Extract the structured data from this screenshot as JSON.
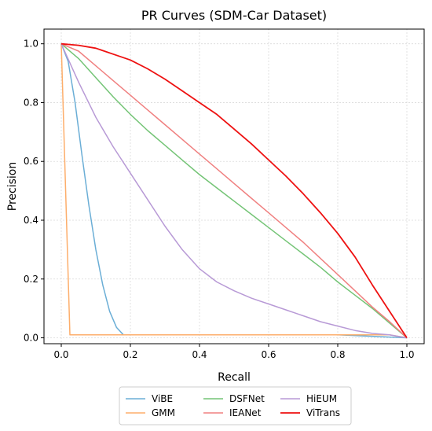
{
  "chart_data": {
    "type": "line",
    "title": "PR Curves (SDM-Car Dataset)",
    "xlabel": "Recall",
    "ylabel": "Precision",
    "xlim": [
      -0.05,
      1.05
    ],
    "ylim": [
      -0.02,
      1.05
    ],
    "xticks": [
      0.0,
      0.2,
      0.4,
      0.6,
      0.8,
      1.0
    ],
    "yticks": [
      0.0,
      0.2,
      0.4,
      0.6,
      0.8,
      1.0
    ],
    "xtick_labels": [
      "0.0",
      "0.2",
      "0.4",
      "0.6",
      "0.8",
      "1.0"
    ],
    "ytick_labels": [
      "0.0",
      "0.2",
      "0.4",
      "0.6",
      "0.8",
      "1.0"
    ],
    "grid": true,
    "legend_position": "bottom-center",
    "series": [
      {
        "name": "ViBE",
        "color": "#6baed6",
        "x": [
          0.0,
          0.02,
          0.04,
          0.06,
          0.08,
          0.1,
          0.12,
          0.14,
          0.16,
          0.18,
          0.2,
          0.4,
          0.6,
          0.8,
          1.0
        ],
        "y": [
          1.0,
          0.94,
          0.8,
          0.62,
          0.45,
          0.3,
          0.18,
          0.09,
          0.035,
          0.01,
          0.01,
          0.01,
          0.01,
          0.01,
          0.0
        ]
      },
      {
        "name": "GMM",
        "color": "#fdae6b",
        "x": [
          0.0,
          0.025,
          0.05,
          0.2,
          0.4,
          0.6,
          0.8,
          0.95,
          1.0
        ],
        "y": [
          1.0,
          0.01,
          0.01,
          0.01,
          0.01,
          0.01,
          0.01,
          0.01,
          0.0
        ]
      },
      {
        "name": "DSFNet",
        "color": "#74c476",
        "x": [
          0.0,
          0.05,
          0.1,
          0.15,
          0.2,
          0.25,
          0.3,
          0.35,
          0.4,
          0.45,
          0.5,
          0.55,
          0.6,
          0.65,
          0.7,
          0.75,
          0.8,
          0.85,
          0.9,
          0.95,
          1.0
        ],
        "y": [
          1.0,
          0.95,
          0.885,
          0.82,
          0.76,
          0.705,
          0.655,
          0.605,
          0.555,
          0.51,
          0.465,
          0.42,
          0.375,
          0.33,
          0.285,
          0.24,
          0.19,
          0.145,
          0.1,
          0.05,
          0.0
        ]
      },
      {
        "name": "IEANet",
        "color": "#f08080",
        "x": [
          0.0,
          0.05,
          0.1,
          0.15,
          0.2,
          0.25,
          0.3,
          0.35,
          0.4,
          0.45,
          0.5,
          0.55,
          0.6,
          0.65,
          0.7,
          0.75,
          0.8,
          0.85,
          0.9,
          0.95,
          1.0
        ],
        "y": [
          1.0,
          0.975,
          0.925,
          0.875,
          0.825,
          0.775,
          0.725,
          0.675,
          0.625,
          0.575,
          0.525,
          0.475,
          0.425,
          0.375,
          0.325,
          0.27,
          0.215,
          0.16,
          0.105,
          0.055,
          0.0
        ]
      },
      {
        "name": "HiEUM",
        "color": "#b89ad6",
        "x": [
          0.0,
          0.05,
          0.1,
          0.15,
          0.2,
          0.25,
          0.3,
          0.35,
          0.4,
          0.45,
          0.5,
          0.55,
          0.6,
          0.65,
          0.7,
          0.75,
          0.8,
          0.85,
          0.9,
          0.95,
          1.0
        ],
        "y": [
          1.0,
          0.87,
          0.75,
          0.65,
          0.56,
          0.47,
          0.38,
          0.3,
          0.235,
          0.19,
          0.16,
          0.135,
          0.115,
          0.095,
          0.075,
          0.055,
          0.04,
          0.025,
          0.015,
          0.01,
          0.0
        ]
      },
      {
        "name": "ViTrans",
        "color": "#ee1111",
        "x": [
          0.0,
          0.05,
          0.1,
          0.15,
          0.2,
          0.25,
          0.3,
          0.35,
          0.4,
          0.45,
          0.5,
          0.55,
          0.6,
          0.65,
          0.7,
          0.75,
          0.8,
          0.85,
          0.9,
          0.95,
          1.0
        ],
        "y": [
          1.0,
          0.995,
          0.985,
          0.965,
          0.945,
          0.915,
          0.88,
          0.84,
          0.8,
          0.76,
          0.71,
          0.66,
          0.605,
          0.55,
          0.49,
          0.425,
          0.355,
          0.275,
          0.18,
          0.09,
          0.0
        ]
      }
    ]
  }
}
